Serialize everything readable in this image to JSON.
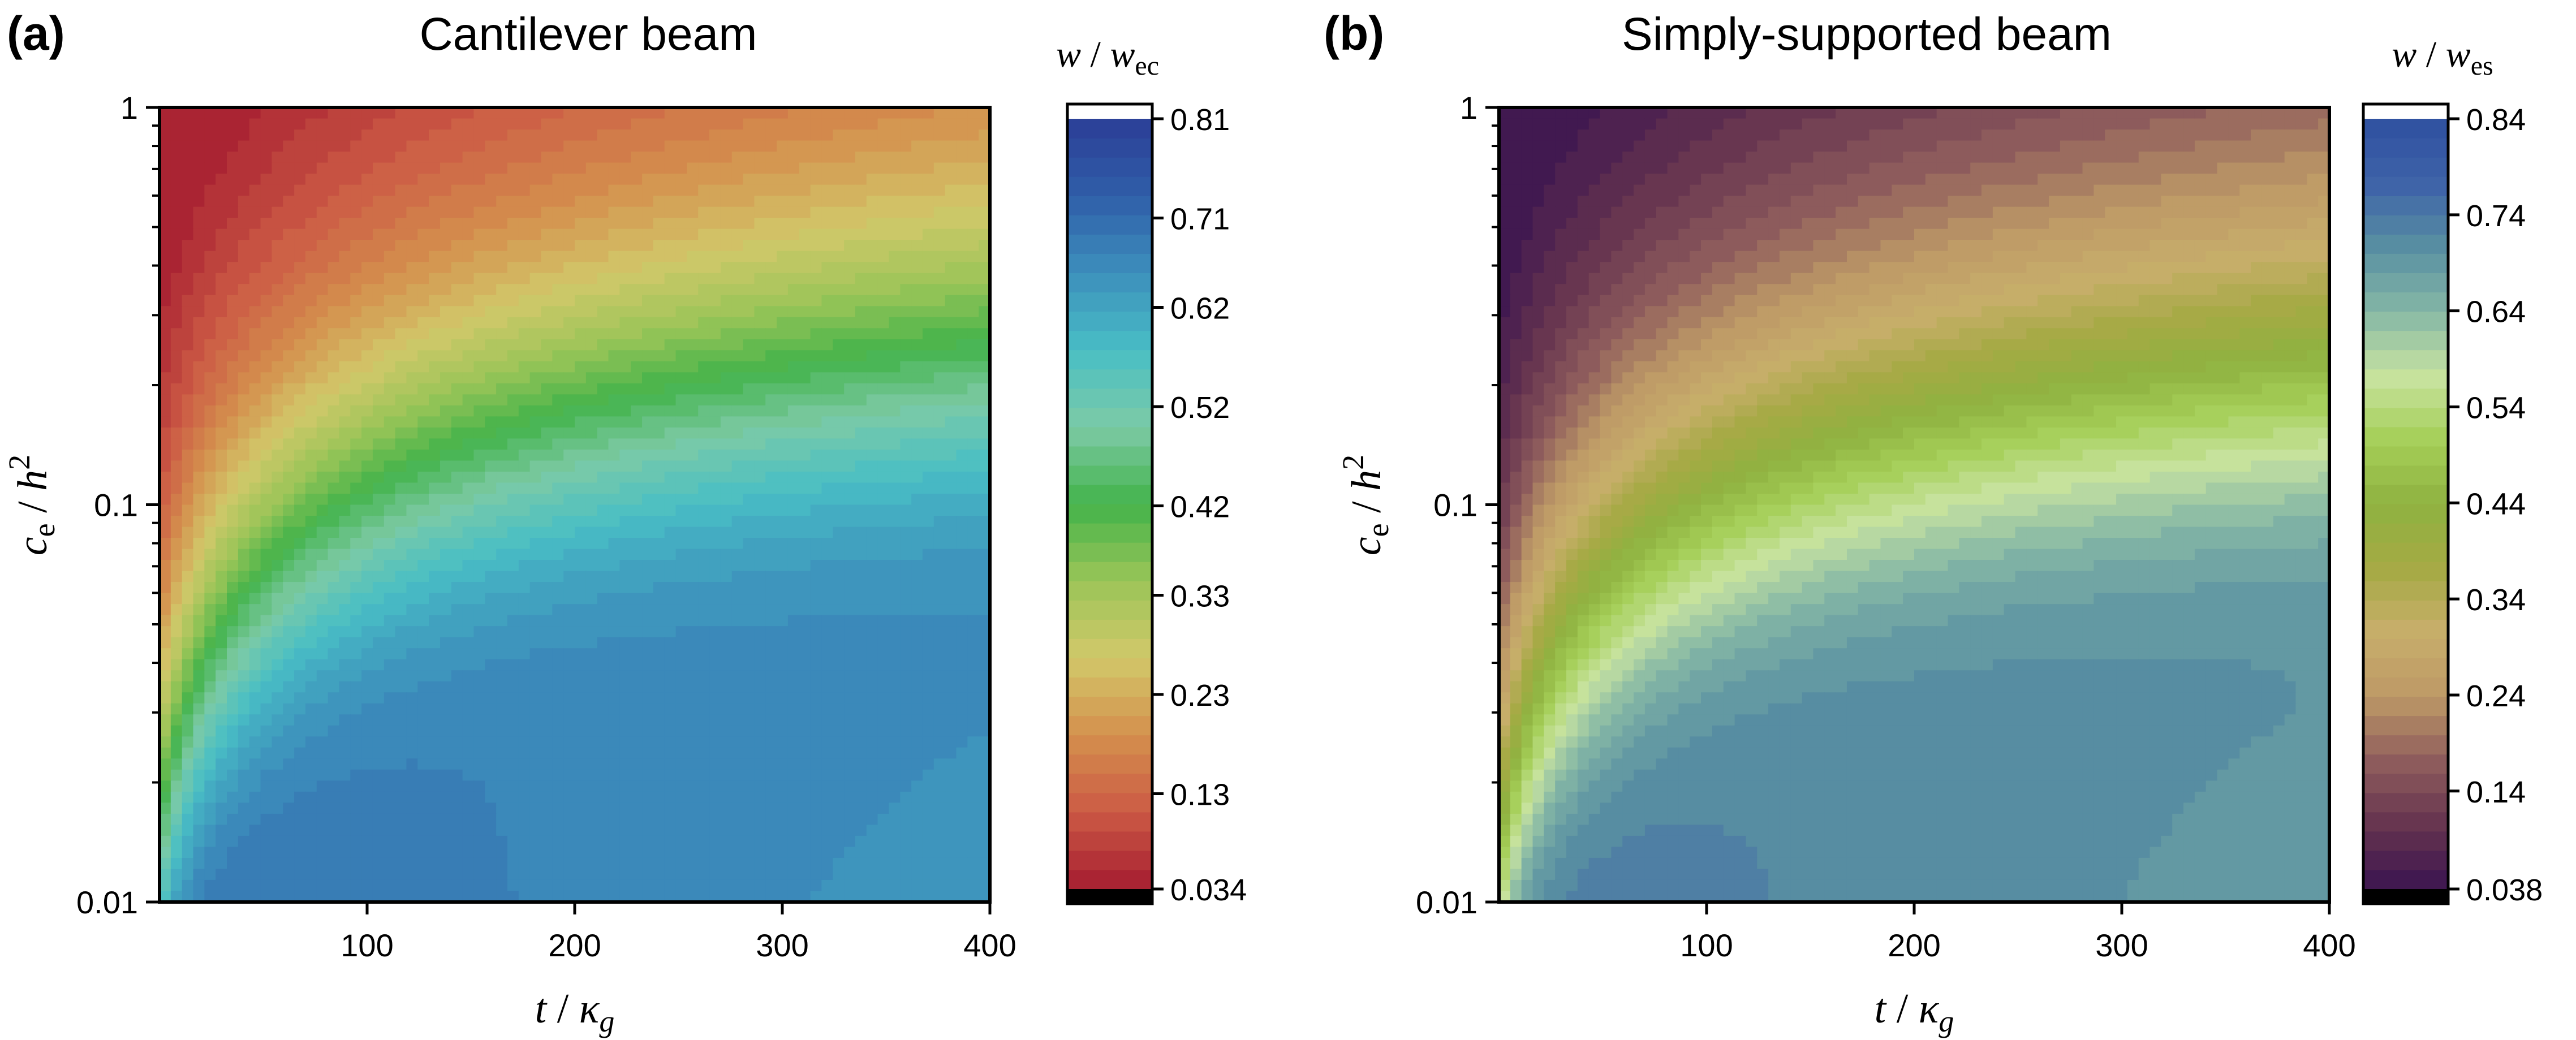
{
  "chart_data": [
    {
      "type": "heatmap",
      "panel_label": "(a)",
      "title": "Cantilever beam",
      "xlabel": {
        "t": "t",
        "sep": " / ",
        "kappa": "κ",
        "sub": "g"
      },
      "ylabel": {
        "c": "c",
        "csub": "e",
        "sep": " / ",
        "h": "h",
        "sup": "2"
      },
      "x_range": [
        0,
        400
      ],
      "x_ticks": [
        100,
        200,
        300,
        400
      ],
      "x_tick_labels": [
        "100",
        "200",
        "300",
        "400"
      ],
      "y_scale": "log",
      "y_range": [
        0.01,
        1
      ],
      "y_ticks": [
        0.01,
        0.1,
        1
      ],
      "y_tick_labels": [
        "0.01",
        "0.1",
        "1"
      ],
      "colorbar": {
        "label": {
          "w": "w",
          "sep": " / ",
          "w2": "w",
          "sub": "ec"
        },
        "min": 0.034,
        "max": 0.81,
        "tick_values": [
          0.034,
          0.13,
          0.23,
          0.33,
          0.42,
          0.52,
          0.62,
          0.71,
          0.81
        ],
        "tick_labels": [
          "0.034",
          "0.13",
          "0.23",
          "0.33",
          "0.42",
          "0.52",
          "0.62",
          "0.71",
          "0.81"
        ],
        "levels": 40,
        "under_color": "#000000",
        "over_color": "#ffffff",
        "colormap": [
          "#a51c30",
          "#cc5a45",
          "#d4904d",
          "#d2c86a",
          "#9bc558",
          "#43b34a",
          "#7dcaa6",
          "#48bec5",
          "#3d8fbc",
          "#2f5ea8",
          "#2c3e97"
        ]
      },
      "field": {
        "model": "cantilever",
        "range": [
          0.034,
          0.81
        ]
      }
    },
    {
      "type": "heatmap",
      "panel_label": "(b)",
      "title": "Simply-supported beam",
      "xlabel": {
        "t": "t",
        "sep": " / ",
        "kappa": "κ",
        "sub": "g"
      },
      "ylabel": {
        "c": "c",
        "csub": "e",
        "sep": " / ",
        "h": "h",
        "sup": "2"
      },
      "x_range": [
        0,
        400
      ],
      "x_ticks": [
        100,
        200,
        300,
        400
      ],
      "x_tick_labels": [
        "100",
        "200",
        "300",
        "400"
      ],
      "y_scale": "log",
      "y_range": [
        0.01,
        1
      ],
      "y_ticks": [
        0.01,
        0.1,
        1
      ],
      "y_tick_labels": [
        "0.01",
        "0.1",
        "1"
      ],
      "colorbar": {
        "label": {
          "w": "w",
          "sep": " / ",
          "w2": "w",
          "sub": "es"
        },
        "min": 0.038,
        "max": 0.84,
        "tick_values": [
          0.038,
          0.14,
          0.24,
          0.34,
          0.44,
          0.54,
          0.64,
          0.74,
          0.84
        ],
        "tick_labels": [
          "0.038",
          "0.14",
          "0.24",
          "0.34",
          "0.44",
          "0.54",
          "0.64",
          "0.74",
          "0.84"
        ],
        "levels": 40,
        "under_color": "#000000",
        "over_color": "#ffffff",
        "colormap": [
          "#3b1450",
          "#66344f",
          "#8f5d5d",
          "#bd9966",
          "#c8ae6b",
          "#a5aa44",
          "#8fb240",
          "#a5cf58",
          "#c8e3a0",
          "#85b7a6",
          "#588fa2",
          "#3e62a8",
          "#2f50a0"
        ]
      },
      "field": {
        "model": "simply",
        "range": [
          0.038,
          0.84
        ]
      }
    }
  ]
}
